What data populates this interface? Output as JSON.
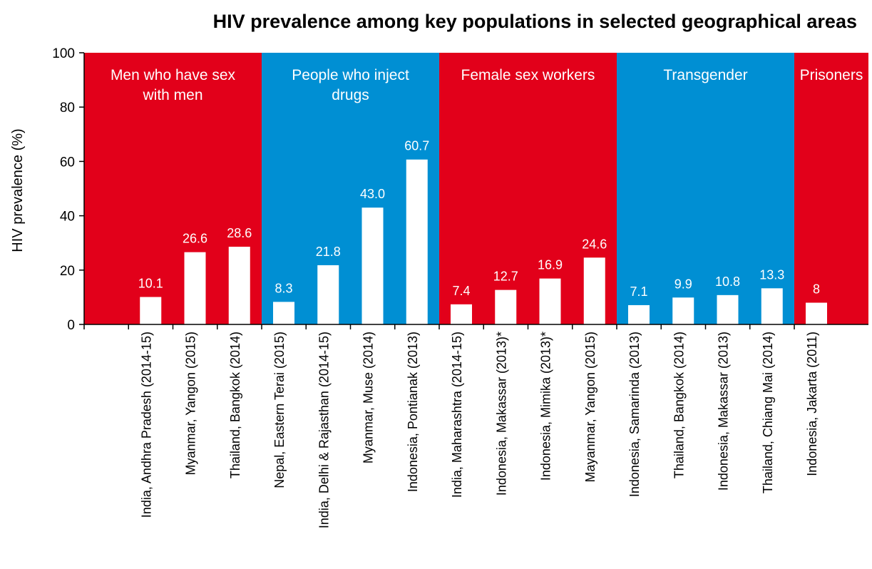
{
  "chart_data": {
    "type": "bar",
    "title": "HIV prevalence among key populations in selected geographical areas",
    "ylabel": "HIV prevalence (%)",
    "xlabel": "",
    "ylim": [
      0,
      100
    ],
    "yticks": [
      0,
      20,
      40,
      60,
      80,
      100
    ],
    "grid": false,
    "bar_color": "#ffffff",
    "groups": [
      {
        "lines": [
          "Men who have sex",
          "with men"
        ],
        "color": "#e2001a",
        "start": 0,
        "count": 3
      },
      {
        "lines": [
          "People who inject",
          "drugs"
        ],
        "color": "#008fd3",
        "start": 3,
        "count": 4
      },
      {
        "lines": [
          "Female sex workers"
        ],
        "color": "#e2001a",
        "start": 7,
        "count": 4
      },
      {
        "lines": [
          "Transgender"
        ],
        "color": "#008fd3",
        "start": 11,
        "count": 4
      },
      {
        "lines": [
          "Prisoners"
        ],
        "color": "#e2001a",
        "start": 15,
        "count": 1
      }
    ],
    "categories": [
      "India, Andhra Pradesh (2014-15)",
      "Myanmar, Yangon (2015)",
      "Thailand, Bangkok (2014)",
      "Nepal, Eastern Terai (2015)",
      "India, Delhi & Rajasthan (2014-15)",
      "Myanmar, Muse (2014)",
      "Indonesia, Pontianak (2013)",
      "India, Maharashtra (2014-15)",
      "Indonesia, Makassar (2013)*",
      "Indonesia, Mimika (2013)*",
      "Mayanmar, Yangon (2015)",
      "Indonesia, Samarinda (2013)",
      "Thailand, Bangkok (2014)",
      "Indonesia, Makassar (2013)",
      "Thailand, Chiang Mai (2014)",
      "Indonesia, Jakarta (2011)"
    ],
    "values": [
      10.1,
      26.6,
      28.6,
      8.3,
      21.8,
      43.0,
      60.7,
      7.4,
      12.7,
      16.9,
      24.6,
      7.1,
      9.9,
      10.8,
      13.3,
      8
    ],
    "value_labels": [
      "10.1",
      "26.6",
      "28.6",
      "8.3",
      "21.8",
      "43.0",
      "60.7",
      "7.4",
      "12.7",
      "16.9",
      "24.6",
      "7.1",
      "9.9",
      "10.8",
      "13.3",
      "8"
    ]
  }
}
